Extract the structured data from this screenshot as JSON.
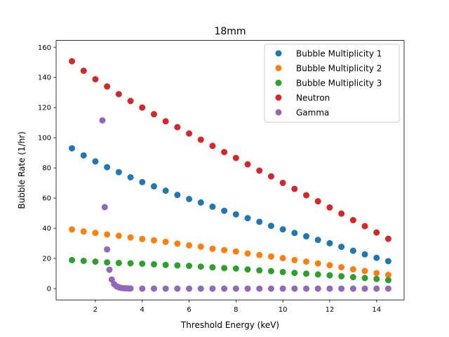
{
  "chart_data": {
    "type": "scatter",
    "title": "18mm",
    "xlabel": "Threshold Energy (keV)",
    "ylabel": "Bubble Rate (1/hr)",
    "xlim": [
      0.325,
      15.175
    ],
    "ylim": [
      -7.5,
      164.5
    ],
    "xticks": [
      2,
      4,
      6,
      8,
      10,
      12,
      14
    ],
    "yticks": [
      0,
      20,
      40,
      60,
      80,
      100,
      120,
      140,
      160
    ],
    "grid": false,
    "legend_position": "top-right",
    "series": [
      {
        "name": "Bubble Multiplicity 1",
        "color": "#1f77b4",
        "x": [
          1.0,
          1.5,
          2.0,
          2.5,
          3.0,
          3.5,
          4.0,
          4.5,
          5.0,
          5.5,
          6.0,
          6.5,
          7.0,
          7.5,
          8.0,
          8.5,
          9.0,
          9.5,
          10.0,
          10.5,
          11.0,
          11.5,
          12.0,
          12.5,
          13.0,
          13.5,
          14.0,
          14.5
        ],
        "y": [
          93,
          88.3,
          84.3,
          80.5,
          77.2,
          73.8,
          70.6,
          67.8,
          64.9,
          62.1,
          59.4,
          57.1,
          54.3,
          51.6,
          49.2,
          46.7,
          44.3,
          41.6,
          39.3,
          36.9,
          34.7,
          32.3,
          30.1,
          27.7,
          25.1,
          22.7,
          20.4,
          18.2
        ]
      },
      {
        "name": "Bubble Multiplicity 2",
        "color": "#ff7f0e",
        "x": [
          1.0,
          1.5,
          2.0,
          2.5,
          3.0,
          3.5,
          4.0,
          4.5,
          5.0,
          5.5,
          6.0,
          6.5,
          7.0,
          7.5,
          8.0,
          8.5,
          9.0,
          9.5,
          10.0,
          10.5,
          11.0,
          11.5,
          12.0,
          12.5,
          13.0,
          13.5,
          14.0,
          14.5
        ],
        "y": [
          39.2,
          37.9,
          36.9,
          35.9,
          35,
          33.9,
          32.9,
          32,
          31,
          29.8,
          28.7,
          27.8,
          26.4,
          25.5,
          24.6,
          23.3,
          22.3,
          21.3,
          20.2,
          18.9,
          17.9,
          16.7,
          15.5,
          14.2,
          12.8,
          11.7,
          10.3,
          9.1
        ]
      },
      {
        "name": "Bubble Multiplicity 3",
        "color": "#2ca02c",
        "x": [
          1.0,
          1.5,
          2.0,
          2.5,
          3.0,
          3.5,
          4.0,
          4.5,
          5.0,
          5.5,
          6.0,
          6.5,
          7.0,
          7.5,
          8.0,
          8.5,
          9.0,
          9.5,
          10.0,
          10.5,
          11.0,
          11.5,
          12.0,
          12.5,
          13.0,
          13.5,
          14.0,
          14.5
        ],
        "y": [
          18.9,
          18.4,
          17.9,
          17.4,
          17,
          16.8,
          16.5,
          16.1,
          15.7,
          15.4,
          15.1,
          14.6,
          14.1,
          13.6,
          13.3,
          12.7,
          12.1,
          11.6,
          11,
          10.4,
          9.9,
          9.4,
          8.8,
          8.2,
          7.6,
          7,
          6.4,
          5.6
        ]
      },
      {
        "name": "Neutron",
        "color": "#d62728",
        "x": [
          1.0,
          1.5,
          2.0,
          2.5,
          3.0,
          3.5,
          4.0,
          4.5,
          5.0,
          5.5,
          6.0,
          6.5,
          7.0,
          7.5,
          8.0,
          8.5,
          9.0,
          9.5,
          10.0,
          10.5,
          11.0,
          11.5,
          12.0,
          12.5,
          13.0,
          13.5,
          14.0,
          14.5
        ],
        "y": [
          150.7,
          144.4,
          138.8,
          134,
          128.9,
          124.4,
          120,
          115.6,
          110.9,
          107,
          102.8,
          98.7,
          94.6,
          90.5,
          86.6,
          82.4,
          78.2,
          74.4,
          70.1,
          66.1,
          61.9,
          57.9,
          53.8,
          49.7,
          45.4,
          41.4,
          37.2,
          33
        ]
      },
      {
        "name": "Gamma",
        "color": "#9467bd",
        "x": [
          2.3,
          2.4,
          2.5,
          2.6,
          2.7,
          2.8,
          2.9,
          3.0,
          3.1,
          3.2,
          3.3,
          3.4,
          3.5,
          4.0,
          4.5,
          5.0,
          5.5,
          6.0,
          6.5,
          7.0,
          7.5,
          8.0,
          8.5,
          9.0,
          9.5,
          10.0,
          10.5,
          11.0,
          11.5,
          12.0,
          12.5,
          13.0,
          13.5,
          14.0,
          14.5
        ],
        "y": [
          111.5,
          54,
          26,
          12.5,
          6,
          3,
          1.6,
          0.9,
          0.5,
          0.3,
          0.2,
          0.1,
          0.1,
          0,
          0,
          0,
          0,
          0,
          0,
          0,
          0,
          0,
          0,
          0,
          0,
          0,
          0,
          0,
          0,
          0,
          0,
          0,
          0,
          0,
          0
        ]
      }
    ]
  }
}
